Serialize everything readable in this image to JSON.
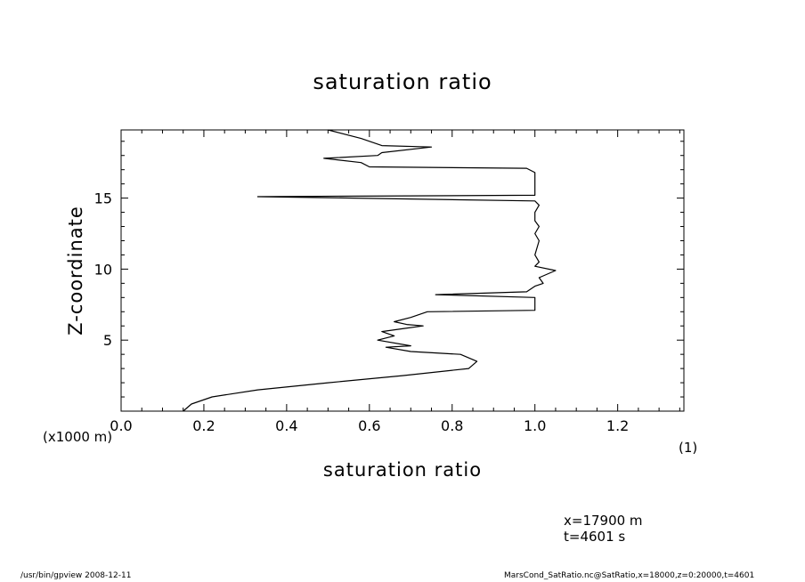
{
  "chart_data": {
    "type": "line",
    "title": "saturation ratio",
    "xlabel": "saturation ratio",
    "ylabel": "Z-coordinate",
    "y_unit_label": "(x1000 m)",
    "x_unit_label": "(1)",
    "xlim": [
      0.0,
      1.36
    ],
    "ylim": [
      0,
      19.8
    ],
    "x_ticks": [
      "0.0",
      "0.2",
      "0.4",
      "0.6",
      "0.8",
      "1.0",
      "1.2"
    ],
    "y_ticks": [
      "5",
      "10",
      "15"
    ],
    "grid": false,
    "series": [
      {
        "points": [
          [
            0.15,
            0.0
          ],
          [
            0.17,
            0.5
          ],
          [
            0.22,
            1.0
          ],
          [
            0.33,
            1.5
          ],
          [
            0.5,
            2.0
          ],
          [
            0.68,
            2.5
          ],
          [
            0.84,
            3.0
          ],
          [
            0.86,
            3.5
          ],
          [
            0.82,
            4.0
          ],
          [
            0.7,
            4.2
          ],
          [
            0.64,
            4.5
          ],
          [
            0.7,
            4.6
          ],
          [
            0.62,
            5.0
          ],
          [
            0.66,
            5.3
          ],
          [
            0.63,
            5.6
          ],
          [
            0.68,
            5.8
          ],
          [
            0.73,
            6.0
          ],
          [
            0.69,
            6.1
          ],
          [
            0.66,
            6.3
          ],
          [
            0.7,
            6.6
          ],
          [
            0.74,
            7.0
          ],
          [
            1.0,
            7.1
          ],
          [
            1.0,
            8.0
          ],
          [
            0.76,
            8.2
          ],
          [
            0.98,
            8.4
          ],
          [
            1.0,
            8.8
          ],
          [
            1.02,
            9.0
          ],
          [
            1.01,
            9.4
          ],
          [
            1.05,
            9.9
          ],
          [
            1.0,
            10.2
          ],
          [
            1.01,
            10.5
          ],
          [
            1.0,
            11.0
          ],
          [
            1.01,
            12.0
          ],
          [
            1.0,
            12.5
          ],
          [
            1.01,
            13.0
          ],
          [
            1.0,
            13.4
          ],
          [
            1.0,
            14.0
          ],
          [
            1.01,
            14.5
          ],
          [
            1.0,
            14.8
          ],
          [
            0.33,
            15.1
          ],
          [
            1.0,
            15.2
          ],
          [
            1.0,
            16.0
          ],
          [
            1.0,
            16.8
          ],
          [
            0.98,
            17.1
          ],
          [
            0.6,
            17.2
          ],
          [
            0.58,
            17.5
          ],
          [
            0.49,
            17.8
          ],
          [
            0.62,
            18.0
          ],
          [
            0.63,
            18.2
          ],
          [
            0.75,
            18.6
          ],
          [
            0.63,
            18.7
          ],
          [
            0.58,
            19.2
          ],
          [
            0.5,
            19.8
          ]
        ]
      }
    ]
  },
  "annotations": {
    "position": "x=17900 m",
    "time": "t=4601 s"
  },
  "footer": {
    "left": "/usr/bin/gpview   2008-12-11",
    "right": "MarsCond_SatRatio.nc@SatRatio,x=18000,z=0:20000,t=4601"
  }
}
